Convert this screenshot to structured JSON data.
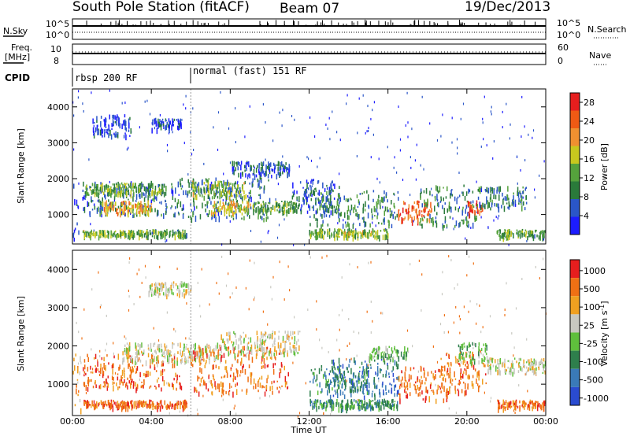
{
  "header": {
    "station": "South Pole Station (fitACF)",
    "beam": "Beam 07",
    "date": "19/Dec/2013"
  },
  "nsky_panel": {
    "left_label": "N.Sky",
    "right_label": "N.Search",
    "right_ticks": [
      "10^5",
      "10^0"
    ],
    "left_ticks": [
      "10^5",
      "10^0"
    ]
  },
  "freq_panel": {
    "left_label_1": "Freq.",
    "left_label_2": "[MHz]",
    "left_ticks": [
      "10",
      "8"
    ],
    "right_label": "Nave",
    "right_ticks": [
      "60",
      "0"
    ]
  },
  "cpid": {
    "label": "CPID",
    "segments": [
      {
        "name": "rbsp 200 RF",
        "start_hour": 0
      },
      {
        "name": "normal (fast) 151 RF",
        "start_hour": 6
      }
    ]
  },
  "chart_data": [
    {
      "type": "heatmap",
      "name": "power",
      "ylabel": "Slant Range [km]",
      "xlabel": "Time UT",
      "xlim_hours": [
        0,
        24
      ],
      "ylim": [
        180,
        4500
      ],
      "y_ticks": [
        1000,
        2000,
        3000,
        4000
      ],
      "x_ticks": [
        "00:00",
        "04:00",
        "08:00",
        "12:00",
        "16:00",
        "20:00",
        "00:00"
      ],
      "colorbar": {
        "label": "Power [dB]",
        "ticks": [
          4,
          8,
          12,
          16,
          20,
          24,
          28
        ],
        "range": [
          0,
          30
        ],
        "colors": [
          "#1c1cff",
          "#2a56c8",
          "#2a7a3a",
          "#55a23c",
          "#c8c81e",
          "#f09030",
          "#f05a14",
          "#e61e1e"
        ]
      },
      "bands": [
        {
          "t0": 0.0,
          "t1": 0.3,
          "r0": 300,
          "r1": 2000,
          "level": 5
        },
        {
          "t0": 0.5,
          "t1": 4.8,
          "r0": 1000,
          "r1": 1950,
          "level": 8
        },
        {
          "t0": 0.6,
          "t1": 4.6,
          "r0": 1600,
          "r1": 1900,
          "level": 12
        },
        {
          "t0": 1.5,
          "t1": 4.0,
          "r0": 1050,
          "r1": 1400,
          "level": 20
        },
        {
          "t0": 0.5,
          "t1": 3.6,
          "r0": 430,
          "r1": 580,
          "level": 14
        },
        {
          "t0": 3.6,
          "t1": 5.8,
          "r0": 420,
          "r1": 600,
          "level": 12
        },
        {
          "t0": 5.0,
          "t1": 10.0,
          "r0": 900,
          "r1": 2050,
          "level": 8
        },
        {
          "t0": 6.0,
          "t1": 8.8,
          "r0": 1500,
          "r1": 1950,
          "level": 14
        },
        {
          "t0": 7.0,
          "t1": 9.0,
          "r0": 1050,
          "r1": 1400,
          "level": 18
        },
        {
          "t0": 8.0,
          "t1": 11.0,
          "r0": 2100,
          "r1": 2500,
          "level": 6
        },
        {
          "t0": 9.0,
          "t1": 11.5,
          "r0": 1100,
          "r1": 1400,
          "level": 12
        },
        {
          "t0": 11.0,
          "t1": 13.5,
          "r0": 1100,
          "r1": 2000,
          "level": 6
        },
        {
          "t0": 12.0,
          "t1": 16.5,
          "r0": 700,
          "r1": 1700,
          "level": 10
        },
        {
          "t0": 12.0,
          "t1": 16.0,
          "r0": 400,
          "r1": 620,
          "level": 14
        },
        {
          "t0": 16.5,
          "t1": 18.2,
          "r0": 850,
          "r1": 1400,
          "level": 24
        },
        {
          "t0": 17.5,
          "t1": 20.5,
          "r0": 700,
          "r1": 1900,
          "level": 10
        },
        {
          "t0": 20.0,
          "t1": 20.8,
          "r0": 1050,
          "r1": 1400,
          "level": 26
        },
        {
          "t0": 20.5,
          "t1": 23.0,
          "r0": 1200,
          "r1": 1800,
          "level": 8
        },
        {
          "t0": 21.5,
          "t1": 24.0,
          "r0": 400,
          "r1": 600,
          "level": 12
        },
        {
          "t0": 1.0,
          "t1": 3.0,
          "r0": 3200,
          "r1": 3800,
          "level": 4
        },
        {
          "t0": 4.0,
          "t1": 5.5,
          "r0": 3400,
          "r1": 3700,
          "level": 4
        }
      ]
    },
    {
      "type": "heatmap",
      "name": "velocity",
      "ylabel": "Slant Range [km]",
      "xlabel": "Time UT",
      "xlim_hours": [
        0,
        24
      ],
      "ylim": [
        180,
        4500
      ],
      "y_ticks": [
        1000,
        2000,
        3000,
        4000
      ],
      "x_ticks": [
        "00:00",
        "04:00",
        "08:00",
        "12:00",
        "16:00",
        "20:00",
        "00:00"
      ],
      "colorbar": {
        "label": "Velocity [m s^-1]",
        "ticks": [
          "1000",
          "500",
          "100",
          "25",
          "-25",
          "-100",
          "-500",
          "-1000"
        ],
        "colors": [
          "#2a4bd0",
          "#3a7ab8",
          "#2e7f4c",
          "#5fbf3c",
          "#c8c8c0",
          "#f0a020",
          "#f07014",
          "#e61e1e"
        ]
      },
      "bands": [
        {
          "t0": 0.0,
          "t1": 0.4,
          "r0": 300,
          "r1": 1900,
          "level": 5
        },
        {
          "t0": 0.5,
          "t1": 5.5,
          "r0": 900,
          "r1": 1800,
          "level": 6
        },
        {
          "t0": 2.5,
          "t1": 7.5,
          "r0": 1600,
          "r1": 2100,
          "level": 4
        },
        {
          "t0": 0.5,
          "t1": 5.8,
          "r0": 420,
          "r1": 600,
          "level": 6
        },
        {
          "t0": 6.0,
          "t1": 11.0,
          "r0": 800,
          "r1": 2000,
          "level": 6
        },
        {
          "t0": 7.5,
          "t1": 11.5,
          "r0": 1800,
          "r1": 2400,
          "level": 4
        },
        {
          "t0": 12.0,
          "t1": 15.0,
          "r0": 800,
          "r1": 1500,
          "level": 2
        },
        {
          "t0": 13.0,
          "t1": 16.5,
          "r0": 700,
          "r1": 1700,
          "level": 1
        },
        {
          "t0": 12.0,
          "t1": 16.5,
          "r0": 400,
          "r1": 620,
          "level": 2
        },
        {
          "t0": 15.0,
          "t1": 17.0,
          "r0": 1700,
          "r1": 2000,
          "level": 3
        },
        {
          "t0": 16.5,
          "t1": 19.0,
          "r0": 600,
          "r1": 1500,
          "level": 6
        },
        {
          "t0": 18.5,
          "t1": 21.0,
          "r0": 800,
          "r1": 1900,
          "level": 6
        },
        {
          "t0": 19.5,
          "t1": 21.0,
          "r0": 1600,
          "r1": 2100,
          "level": 3
        },
        {
          "t0": 21.0,
          "t1": 24.0,
          "r0": 1300,
          "r1": 1700,
          "level": 4
        },
        {
          "t0": 21.5,
          "t1": 24.0,
          "r0": 400,
          "r1": 600,
          "level": 6
        },
        {
          "t0": 3.8,
          "t1": 6.0,
          "r0": 3350,
          "r1": 3700,
          "level": 4
        }
      ]
    }
  ]
}
